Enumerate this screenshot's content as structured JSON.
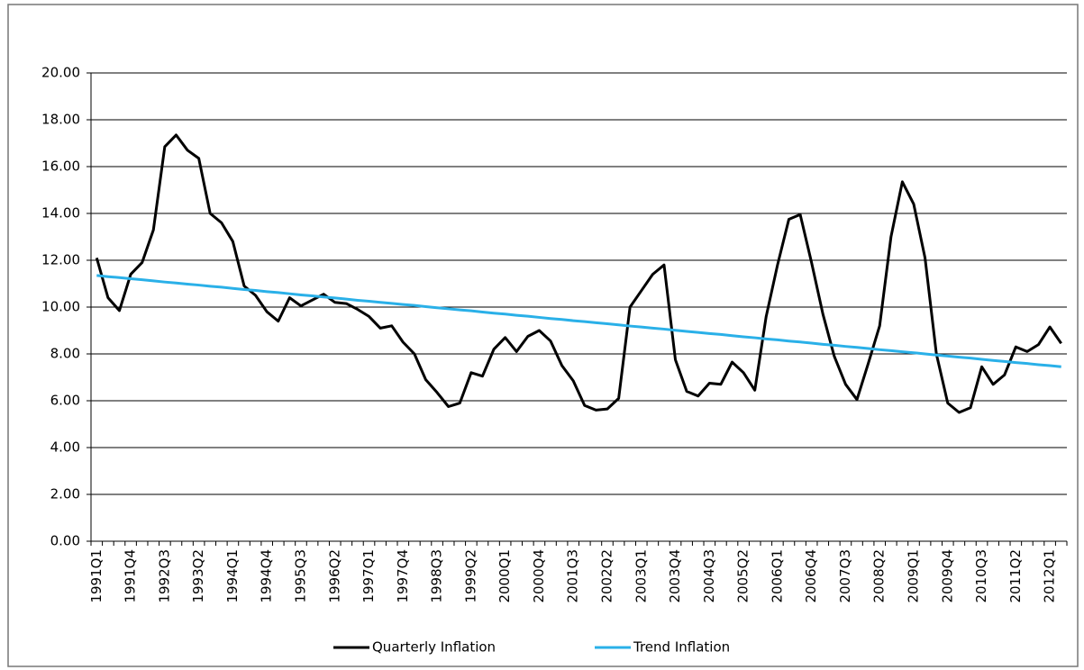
{
  "chart_data": {
    "type": "line",
    "categories": [
      "1991Q1",
      null,
      null,
      "1991Q4",
      null,
      null,
      "1992Q3",
      null,
      null,
      "1993Q2",
      null,
      null,
      "1994Q1",
      null,
      null,
      "1994Q4",
      null,
      null,
      "1995Q3",
      null,
      null,
      "1996Q2",
      null,
      null,
      "1997Q1",
      null,
      null,
      "1997Q4",
      null,
      null,
      "1998Q3",
      null,
      null,
      "1999Q2",
      null,
      null,
      "2000Q1",
      null,
      null,
      "2000Q4",
      null,
      null,
      "2001Q3",
      null,
      null,
      "2002Q2",
      null,
      null,
      "2003Q1",
      null,
      null,
      "2003Q4",
      null,
      null,
      "2004Q3",
      null,
      null,
      "2005Q2",
      null,
      null,
      "2006Q1",
      null,
      null,
      "2006Q4",
      null,
      null,
      "2007Q3",
      null,
      null,
      "2008Q2",
      null,
      null,
      "2009Q1",
      null,
      null,
      "2009Q4",
      null,
      null,
      "2010Q3",
      null,
      null,
      "2011Q2",
      null,
      null,
      "2012Q1",
      null
    ],
    "series": [
      {
        "name": "Quarterly Inflation",
        "color": "#000000",
        "values": [
          12.1,
          10.4,
          9.85,
          11.4,
          11.9,
          13.3,
          16.85,
          17.35,
          16.7,
          16.35,
          14.0,
          13.6,
          12.8,
          10.9,
          10.5,
          9.8,
          9.4,
          10.4,
          10.05,
          10.3,
          10.55,
          10.2,
          10.15,
          9.9,
          9.6,
          9.1,
          9.2,
          8.5,
          8.0,
          6.9,
          6.35,
          5.75,
          5.9,
          7.2,
          7.05,
          8.2,
          8.7,
          8.1,
          8.75,
          9.0,
          8.55,
          7.5,
          6.85,
          5.8,
          5.6,
          5.65,
          6.1,
          10.0,
          10.7,
          11.4,
          11.8,
          7.75,
          6.4,
          6.2,
          6.75,
          6.7,
          7.65,
          7.2,
          6.45,
          9.6,
          11.8,
          13.75,
          13.95,
          11.9,
          9.7,
          7.9,
          6.7,
          6.05,
          7.6,
          9.2,
          13.0,
          15.35,
          14.4,
          12.1,
          8.0,
          5.9,
          5.5,
          5.7,
          7.45,
          6.7,
          7.1,
          8.3,
          8.1,
          8.4,
          9.15,
          8.45
        ]
      },
      {
        "name": "Trend Inflation",
        "color": "#2ab0e8",
        "values": [
          11.35,
          11.3,
          11.26,
          11.21,
          11.17,
          11.12,
          11.07,
          11.03,
          10.98,
          10.94,
          10.89,
          10.85,
          10.8,
          10.75,
          10.71,
          10.66,
          10.62,
          10.57,
          10.52,
          10.48,
          10.43,
          10.39,
          10.34,
          10.29,
          10.25,
          10.2,
          10.16,
          10.11,
          10.07,
          10.02,
          9.97,
          9.93,
          9.88,
          9.84,
          9.79,
          9.74,
          9.7,
          9.65,
          9.61,
          9.56,
          9.51,
          9.47,
          9.42,
          9.38,
          9.33,
          9.29,
          9.24,
          9.19,
          9.15,
          9.1,
          9.06,
          9.01,
          8.96,
          8.92,
          8.87,
          8.83,
          8.78,
          8.73,
          8.69,
          8.64,
          8.6,
          8.55,
          8.51,
          8.46,
          8.41,
          8.37,
          8.32,
          8.28,
          8.23,
          8.18,
          8.14,
          8.09,
          8.05,
          8.0,
          7.95,
          7.91,
          7.86,
          7.82,
          7.77,
          7.72,
          7.68,
          7.63,
          7.59,
          7.54,
          7.5,
          7.45
        ]
      }
    ],
    "ylim": [
      0,
      20
    ],
    "yticks": [
      {
        "value": 0,
        "label": "0.00"
      },
      {
        "value": 2,
        "label": "2.00"
      },
      {
        "value": 4,
        "label": "4.00"
      },
      {
        "value": 6,
        "label": "6.00"
      },
      {
        "value": 8,
        "label": "8.00"
      },
      {
        "value": 10,
        "label": "10.00"
      },
      {
        "value": 12,
        "label": "12.00"
      },
      {
        "value": 14,
        "label": "14.00"
      },
      {
        "value": 16,
        "label": "16.00"
      },
      {
        "value": 18,
        "label": "18.00"
      },
      {
        "value": 20,
        "label": "20.00"
      }
    ],
    "grid": true,
    "legend": "bottom"
  }
}
